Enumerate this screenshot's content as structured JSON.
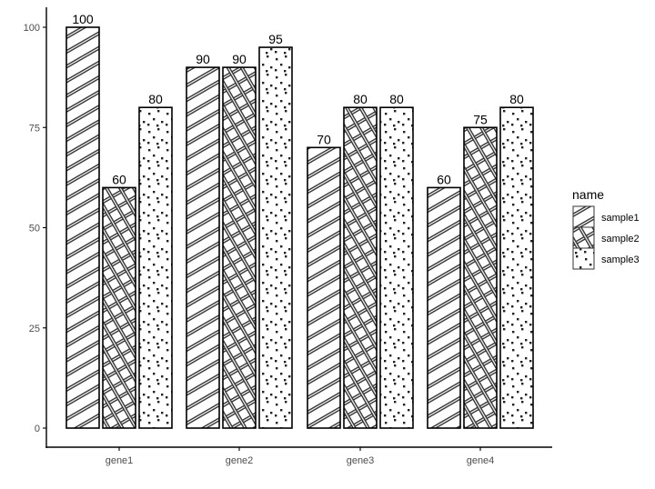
{
  "chart_data": {
    "type": "bar",
    "title": "",
    "xlabel": "",
    "ylabel": "",
    "categories": [
      "gene1",
      "gene2",
      "gene3",
      "gene4"
    ],
    "series": [
      {
        "name": "sample1",
        "pattern": "stripe",
        "values": [
          100,
          90,
          70,
          60
        ]
      },
      {
        "name": "sample2",
        "pattern": "crosshatch",
        "values": [
          60,
          90,
          80,
          75
        ]
      },
      {
        "name": "sample3",
        "pattern": "dots",
        "values": [
          80,
          95,
          80,
          80
        ]
      }
    ],
    "yticks": [
      0,
      25,
      50,
      75,
      100
    ],
    "ylim": [
      -5,
      105
    ],
    "grid": false,
    "bar_labels": true,
    "legend": {
      "title": "name",
      "position": "right",
      "entries": [
        "sample1",
        "sample2",
        "sample3"
      ]
    },
    "colors": {
      "bar_fill": "#ffffff",
      "bar_border": "#000000",
      "pattern": "#333333",
      "axis": "#000000",
      "tick_text": "#4d4d4d"
    }
  }
}
